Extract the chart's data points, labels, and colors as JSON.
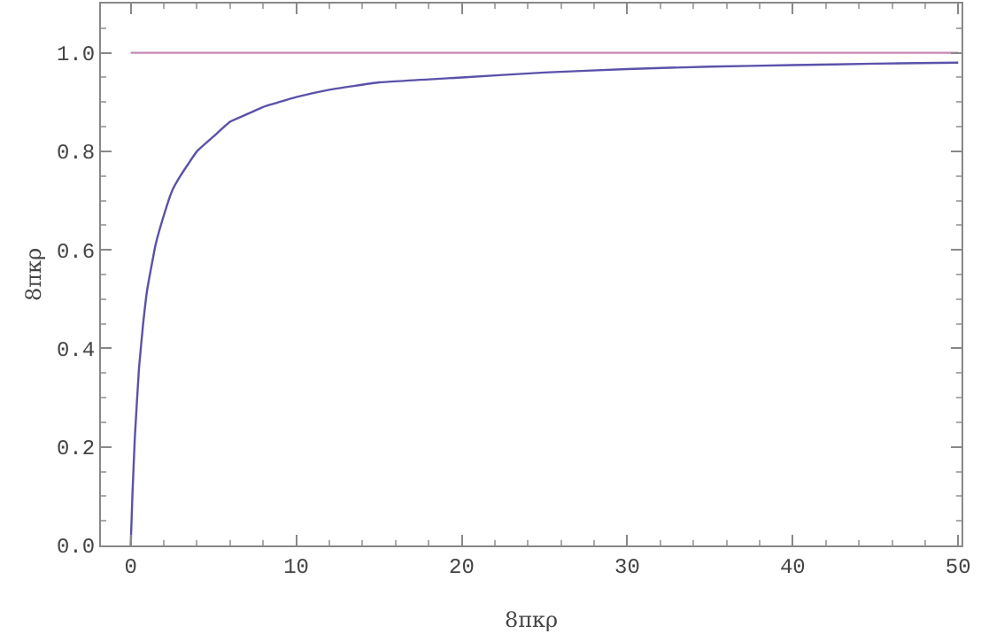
{
  "chart_data": {
    "type": "line",
    "xlabel": "8πκρ",
    "ylabel": "8πκρ",
    "xlim": [
      -1.8,
      50.2
    ],
    "ylim": [
      0,
      1.1
    ],
    "xticks": [
      0,
      10,
      20,
      30,
      40,
      50
    ],
    "yticks": [
      {
        "value": 0,
        "label": "0.0"
      },
      {
        "value": 0.2,
        "label": "0.2"
      },
      {
        "value": 0.4,
        "label": "0.4"
      },
      {
        "value": 0.6,
        "label": "0.6"
      },
      {
        "value": 0.8,
        "label": "0.8"
      },
      {
        "value": 1,
        "label": "1.0"
      }
    ],
    "marker": "none",
    "line_style": "solid",
    "series": [
      {
        "color": "#5a52aa",
        "x": [
          0,
          0.1,
          0.25,
          0.5,
          0.75,
          1,
          1.5,
          2,
          2.5,
          3,
          4,
          5,
          6,
          7,
          8,
          10,
          12,
          15,
          20,
          25,
          30,
          35,
          40,
          45,
          50
        ],
        "values": [
          0,
          0.1,
          0.22,
          0.36,
          0.45,
          0.52,
          0.61,
          0.67,
          0.72,
          0.75,
          0.8,
          0.83,
          0.86,
          0.875,
          0.89,
          0.91,
          0.925,
          0.94,
          0.95,
          0.96,
          0.967,
          0.972,
          0.975,
          0.978,
          0.98
        ]
      },
      {
        "color": "#c889b4",
        "x": [
          0,
          50
        ],
        "values": [
          1,
          1
        ]
      }
    ]
  }
}
